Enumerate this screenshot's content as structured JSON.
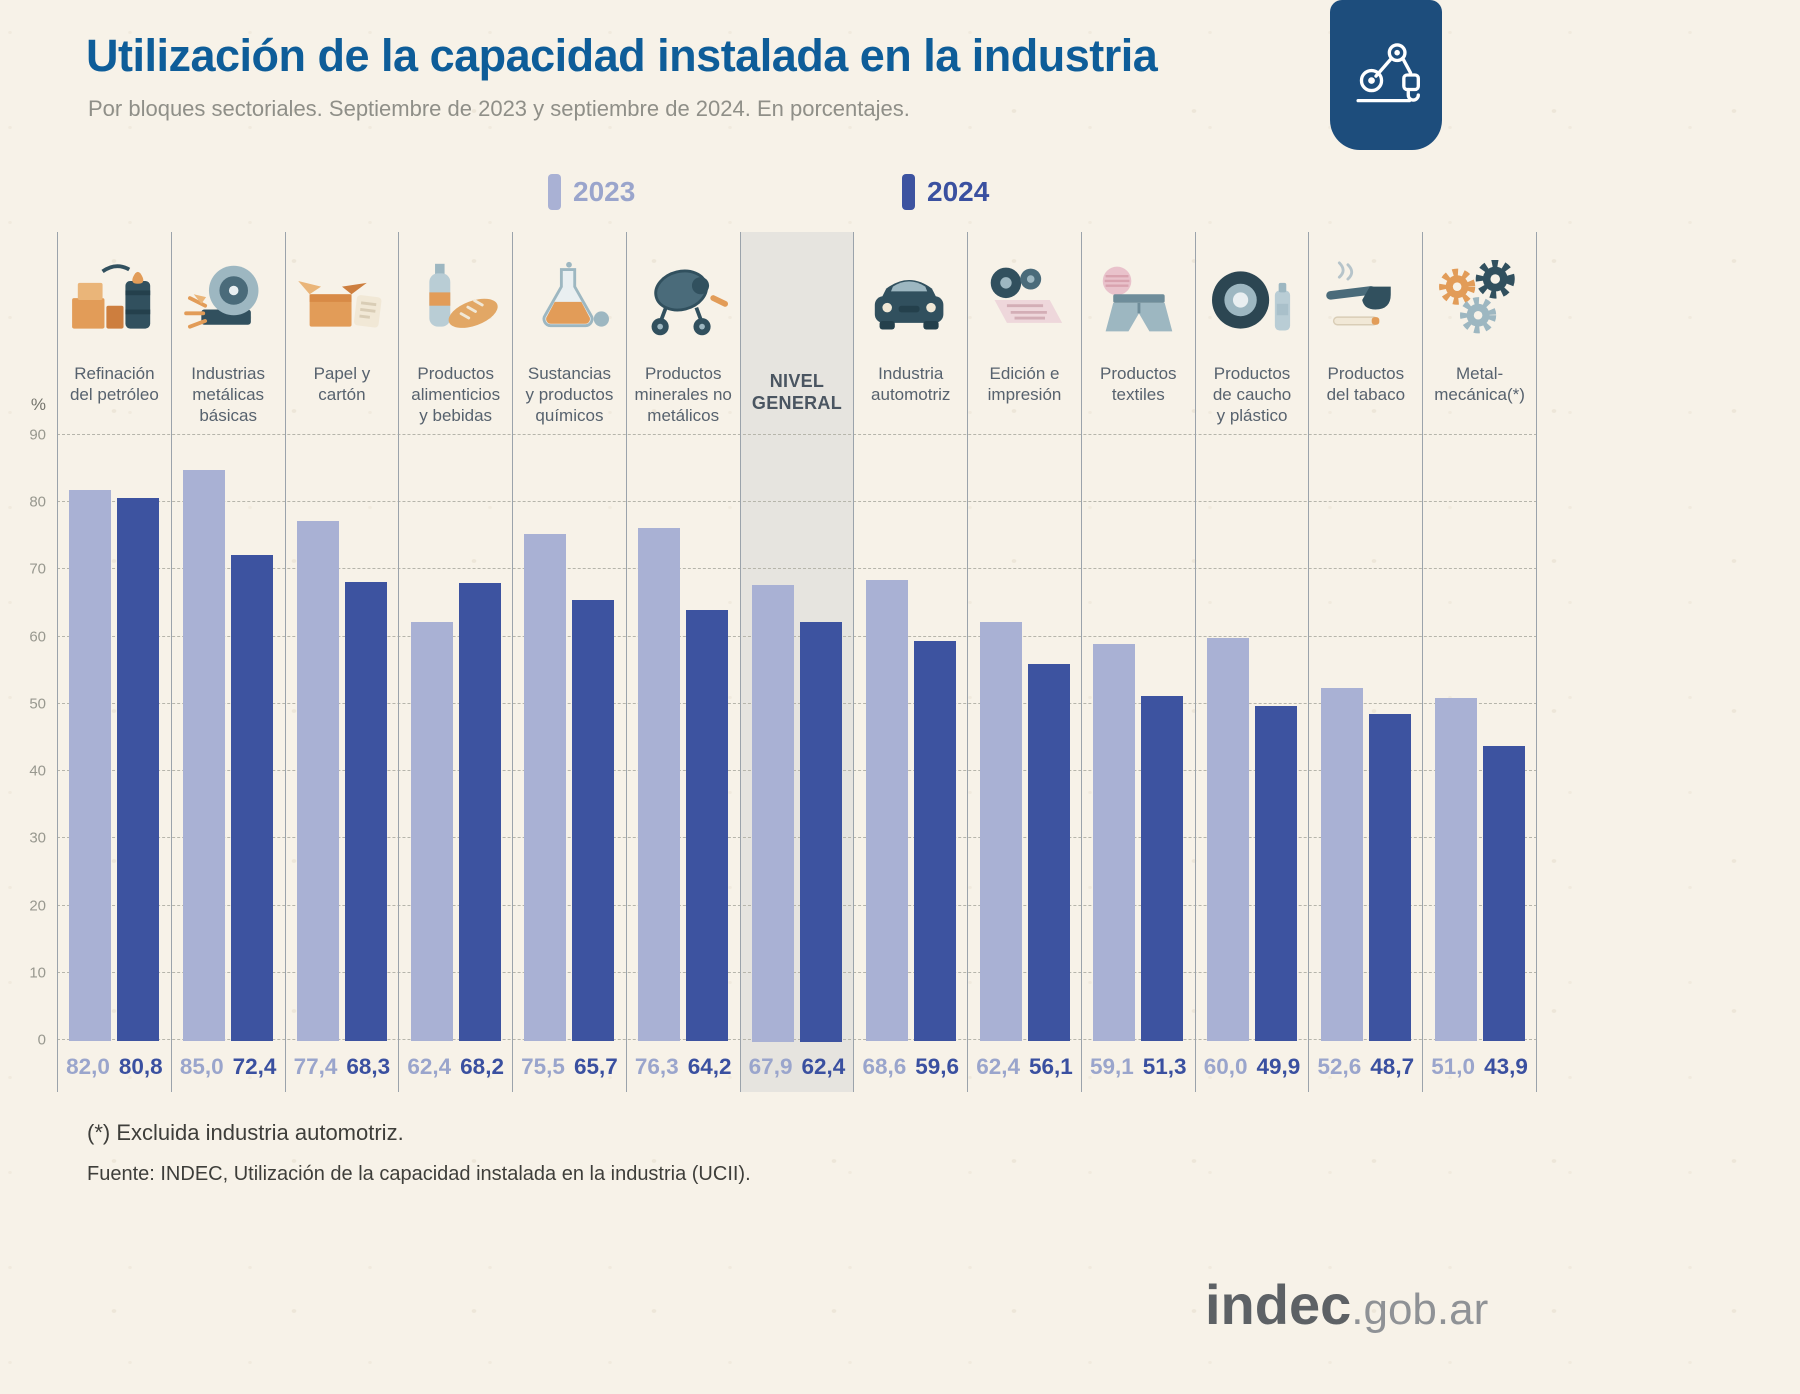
{
  "header": {
    "title": "Utilización de la capacidad instalada en la industria",
    "subtitle": "Por bloques sectoriales. Septiembre de 2023 y septiembre de 2024. En porcentajes."
  },
  "legend": [
    {
      "label": "2023"
    },
    {
      "label": "2024"
    }
  ],
  "axis": {
    "unit": "%"
  },
  "columns": [
    {
      "label": "Refinación\ndel petróleo",
      "icon": "oil-refining-icon",
      "highlight": false
    },
    {
      "label": "Industrias\nmetálicas\nbásicas",
      "icon": "basic-metals-icon",
      "highlight": false
    },
    {
      "label": "Papel y\ncartón",
      "icon": "paper-cardboard-icon",
      "highlight": false
    },
    {
      "label": "Productos\nalimenticios\ny bebidas",
      "icon": "food-beverages-icon",
      "highlight": false
    },
    {
      "label": "Sustancias\ny productos\nquímicos",
      "icon": "chemicals-icon",
      "highlight": false
    },
    {
      "label": "Productos\nminerales no\nmetálicos",
      "icon": "non-metallic-minerals-icon",
      "highlight": false
    },
    {
      "label": "NIVEL\nGENERAL",
      "icon": null,
      "highlight": true
    },
    {
      "label": "Industria\nautomotriz",
      "icon": "automotive-icon",
      "highlight": false
    },
    {
      "label": "Edición e\nimpresión",
      "icon": "printing-icon",
      "highlight": false
    },
    {
      "label": "Productos\ntextiles",
      "icon": "textiles-icon",
      "highlight": false
    },
    {
      "label": "Productos\nde caucho\ny plástico",
      "icon": "rubber-plastic-icon",
      "highlight": false
    },
    {
      "label": "Productos\ndel tabaco",
      "icon": "tobacco-icon",
      "highlight": false
    },
    {
      "label": "Metal-\nmecánica(*)",
      "icon": "metal-mechanic-icon",
      "highlight": false
    }
  ],
  "footer": {
    "footnote": "(*) Excluida industria automotriz.",
    "source": "Fuente: INDEC, Utilización de la capacidad instalada en la industria (UCII).",
    "logo_main": "indec",
    "logo_suffix": ".gob.ar"
  },
  "chart_data": {
    "type": "bar",
    "title": "Utilización de la capacidad instalada en la industria",
    "subtitle": "Por bloques sectoriales. Septiembre de 2023 y septiembre de 2024. En porcentajes.",
    "categories": [
      "Refinación del petróleo",
      "Industrias metálicas básicas",
      "Papel y cartón",
      "Productos alimenticios y bebidas",
      "Sustancias y productos químicos",
      "Productos minerales no metálicos",
      "Nivel general",
      "Industria automotriz",
      "Edición e impresión",
      "Productos textiles",
      "Productos de caucho y plástico",
      "Productos del tabaco",
      "Metal-mecánica (*)"
    ],
    "series": [
      {
        "name": "2023",
        "color": "#a9b1d4",
        "label_color": "#9aa5cc",
        "values": [
          82.0,
          85.0,
          77.4,
          62.4,
          75.5,
          76.3,
          67.9,
          68.6,
          62.4,
          59.1,
          60.0,
          52.6,
          51.0
        ]
      },
      {
        "name": "2024",
        "color": "#3d53a0",
        "label_color": "#3a50a0",
        "values": [
          80.8,
          72.4,
          68.3,
          68.2,
          65.7,
          64.2,
          62.4,
          59.6,
          56.1,
          51.3,
          49.9,
          48.7,
          43.9
        ]
      }
    ],
    "xlabel": "",
    "ylabel": "%",
    "ylim": [
      0,
      90
    ],
    "yticks": [
      0,
      10,
      20,
      30,
      40,
      50,
      60,
      70,
      80,
      90
    ],
    "grid": "horizontal dashed",
    "legend_position": "top",
    "highlight_category": "Nivel general"
  }
}
